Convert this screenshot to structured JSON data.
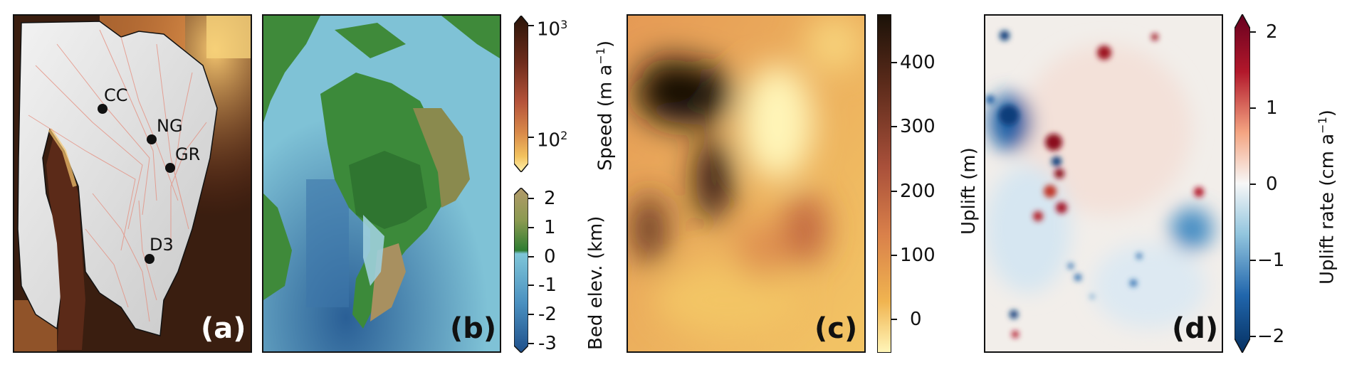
{
  "panels": {
    "a": {
      "letter": "(a)",
      "letter_color": "#ffffff",
      "sites": [
        {
          "label": "CC"
        },
        {
          "label": "NG"
        },
        {
          "label": "GR"
        },
        {
          "label": "D3"
        }
      ]
    },
    "b": {
      "letter": "(b)",
      "letter_color": "#111111"
    },
    "c": {
      "letter": "(c)",
      "letter_color": "#111111"
    },
    "d": {
      "letter": "(d)",
      "letter_color": "#111111"
    }
  },
  "colorbars": {
    "speed": {
      "label": "Speed (m a",
      "label_sup": "−1",
      "label_close": ")",
      "ticks": [
        {
          "base": "10",
          "exp": "3"
        },
        {
          "base": "10",
          "exp": "2"
        }
      ],
      "colors": [
        "#2a1408",
        "#6e2c1c",
        "#b5533a",
        "#d98a4a",
        "#f2c25e",
        "#fff3b0"
      ]
    },
    "bed": {
      "label": "Bed elev. (km)",
      "ticks": [
        "2",
        "1",
        "0",
        "-1",
        "-2",
        "-3"
      ],
      "colors_land": [
        "#b39a6a",
        "#8a9a50",
        "#2e7d32"
      ],
      "colors_sea": [
        "#7fc6d8",
        "#4a90c0",
        "#1f4f8a"
      ]
    },
    "uplift": {
      "label": "Uplift (m)",
      "ticks": [
        "400",
        "300",
        "200",
        "100",
        "0"
      ],
      "colors": [
        "#1b1208",
        "#5a2a1a",
        "#a9503a",
        "#d9804a",
        "#f0b450",
        "#fff5b8"
      ]
    },
    "uplift_rate": {
      "label": "Uplift rate (cm a",
      "label_sup": "−1",
      "label_close": ")",
      "ticks": [
        "2",
        "1",
        "0",
        "−1",
        "−2"
      ],
      "colors": [
        "#67001f",
        "#b2182b",
        "#f4a582",
        "#f7f7f7",
        "#92c5de",
        "#2166ac",
        "#053061"
      ]
    }
  }
}
